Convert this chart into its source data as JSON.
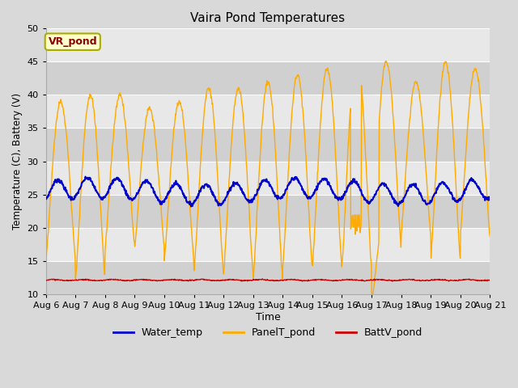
{
  "title": "Vaira Pond Temperatures",
  "xlabel": "Time",
  "ylabel": "Temperature (C), Battery (V)",
  "ylim": [
    10,
    50
  ],
  "n_days": 15,
  "annotation_text": "VR_pond",
  "legend_labels": [
    "Water_temp",
    "PanelT_pond",
    "BattV_pond"
  ],
  "water_color": "#0000cc",
  "panel_color": "#ffaa00",
  "batt_color": "#cc0000",
  "bg_color": "#d9d9d9",
  "band_light": "#e8e8e8",
  "band_dark": "#d0d0d0",
  "yticks": [
    10,
    15,
    20,
    25,
    30,
    35,
    40,
    45,
    50
  ],
  "water_base": 25.5,
  "batt_base": 12.1
}
